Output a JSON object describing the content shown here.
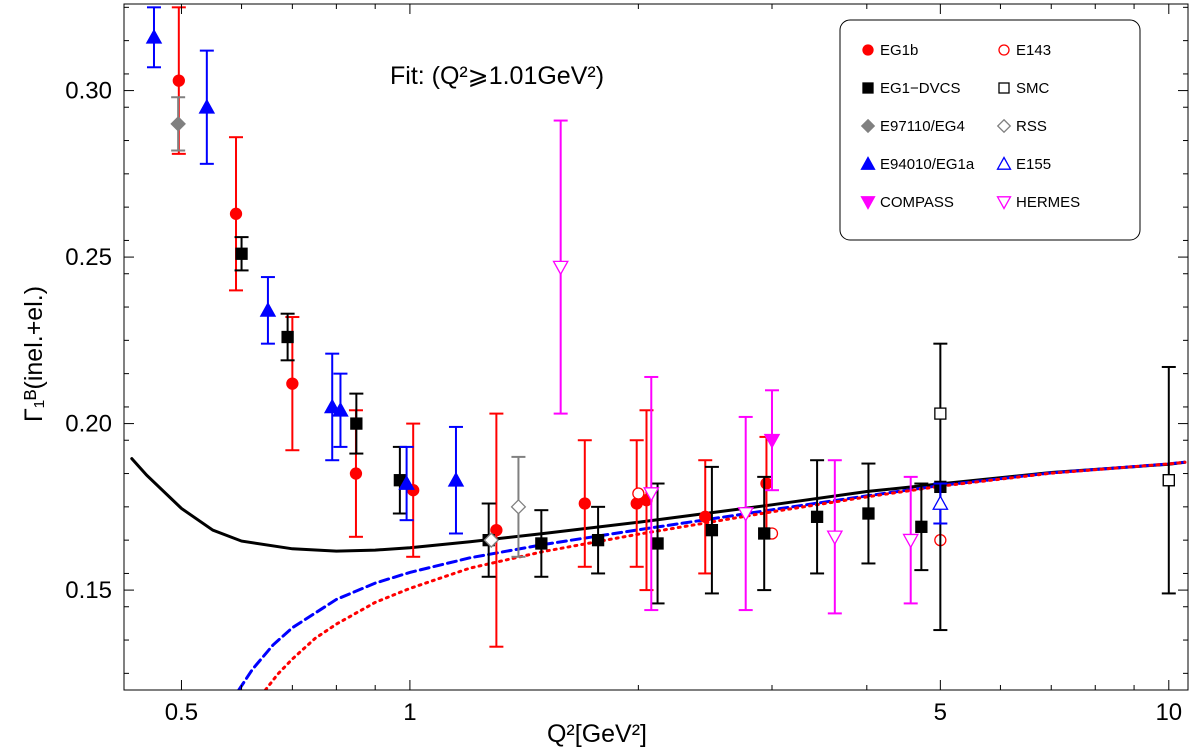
{
  "chart_data": {
    "type": "scatter",
    "title": "",
    "xlabel": "Q²[GeV²]",
    "ylabel": "Γ₁ᴮ(inel.+el.)",
    "xscale": "log",
    "xlim": [
      0.42,
      10.6
    ],
    "ylim": [
      0.12,
      0.326
    ],
    "x_ticks": [
      0.5,
      1,
      5,
      10
    ],
    "x_tick_labels": [
      "0.5",
      "1",
      "5",
      "10"
    ],
    "y_ticks": [
      0.15,
      0.2,
      0.25,
      0.3
    ],
    "y_tick_labels": [
      "0.15",
      "0.20",
      "0.25",
      "0.30"
    ],
    "grid": false,
    "annotation": "Fit:  (Q²⩾1.01GeV²)",
    "legend_position": "top-right",
    "series": [
      {
        "name": "EG1b",
        "marker": "filled-circle",
        "color": "#ff0000",
        "points": [
          {
            "x": 0.496,
            "y": 0.303,
            "err": 0.022
          },
          {
            "x": 0.59,
            "y": 0.263,
            "err": 0.023
          },
          {
            "x": 0.7,
            "y": 0.212,
            "err": 0.02
          },
          {
            "x": 0.849,
            "y": 0.185,
            "err": 0.019
          },
          {
            "x": 1.01,
            "y": 0.18,
            "err": 0.02
          },
          {
            "x": 1.3,
            "y": 0.168,
            "err": 0.035
          },
          {
            "x": 1.7,
            "y": 0.176,
            "err": 0.019
          },
          {
            "x": 2.05,
            "y": 0.177,
            "err": 0.027
          },
          {
            "x": 2.45,
            "y": 0.172,
            "err": 0.017
          },
          {
            "x": 2.95,
            "y": 0.182,
            "err": 0.014
          },
          {
            "x": 1.99,
            "y": 0.176,
            "err": 0.019
          }
        ]
      },
      {
        "name": "E143",
        "marker": "open-circle",
        "color": "#ff0000",
        "points": [
          {
            "x": 2.0,
            "y": 0.179,
            "err": 0.0
          },
          {
            "x": 3.0,
            "y": 0.167,
            "err": 0.0
          },
          {
            "x": 5.0,
            "y": 0.165,
            "err": 0.0
          }
        ]
      },
      {
        "name": "EG1−DVCS",
        "marker": "filled-square",
        "color": "#000000",
        "points": [
          {
            "x": 0.6,
            "y": 0.251,
            "err": 0.005
          },
          {
            "x": 0.69,
            "y": 0.226,
            "err": 0.007
          },
          {
            "x": 0.85,
            "y": 0.2,
            "err": 0.009
          },
          {
            "x": 0.97,
            "y": 0.183,
            "err": 0.01
          },
          {
            "x": 1.27,
            "y": 0.165,
            "err": 0.011
          },
          {
            "x": 1.49,
            "y": 0.164,
            "err": 0.01
          },
          {
            "x": 1.77,
            "y": 0.165,
            "err": 0.01
          },
          {
            "x": 2.12,
            "y": 0.164,
            "err": 0.018
          },
          {
            "x": 2.5,
            "y": 0.168,
            "err": 0.019
          },
          {
            "x": 2.93,
            "y": 0.167,
            "err": 0.017
          },
          {
            "x": 3.44,
            "y": 0.172,
            "err": 0.017
          },
          {
            "x": 4.02,
            "y": 0.173,
            "err": 0.015
          },
          {
            "x": 4.72,
            "y": 0.169,
            "err": 0.013
          },
          {
            "x": 5.0,
            "y": 0.181,
            "err": 0.043
          },
          {
            "x": 10.0,
            "y": 0.183,
            "err": 0.034
          }
        ]
      },
      {
        "name": "SMC",
        "marker": "open-square",
        "color": "#000000",
        "points": [
          {
            "x": 5.0,
            "y": 0.203,
            "err": 0.0
          },
          {
            "x": 10.0,
            "y": 0.183,
            "err": 0.0
          }
        ]
      },
      {
        "name": "E97110/EG4",
        "marker": "filled-diamond",
        "color": "#808080",
        "points": [
          {
            "x": 0.495,
            "y": 0.29,
            "err": 0.008
          }
        ]
      },
      {
        "name": "RSS",
        "marker": "open-diamond",
        "color": "#808080",
        "points": [
          {
            "x": 1.39,
            "y": 0.175,
            "err": 0.015
          },
          {
            "x": 1.28,
            "y": 0.165,
            "err": 0.0
          }
        ]
      },
      {
        "name": "E94010/EG1a",
        "marker": "filled-triangle-up",
        "color": "#0000ff",
        "points": [
          {
            "x": 0.46,
            "y": 0.316,
            "err": 0.009
          },
          {
            "x": 0.54,
            "y": 0.295,
            "err": 0.017
          },
          {
            "x": 0.65,
            "y": 0.234,
            "err": 0.01
          },
          {
            "x": 0.79,
            "y": 0.205,
            "err": 0.016
          },
          {
            "x": 0.81,
            "y": 0.204,
            "err": 0.011
          },
          {
            "x": 0.99,
            "y": 0.182,
            "err": 0.011
          },
          {
            "x": 1.15,
            "y": 0.183,
            "err": 0.016
          }
        ]
      },
      {
        "name": "E155",
        "marker": "open-triangle-up",
        "color": "#0000ff",
        "points": [
          {
            "x": 5.0,
            "y": 0.176,
            "err": 0.006
          }
        ]
      },
      {
        "name": "COMPASS",
        "marker": "filled-triangle-down",
        "color": "#ff00ff",
        "points": [
          {
            "x": 3.0,
            "y": 0.195,
            "err": 0.015
          }
        ]
      },
      {
        "name": "HERMES",
        "marker": "open-triangle-down",
        "color": "#ff00ff",
        "points": [
          {
            "x": 1.58,
            "y": 0.247,
            "err": 0.044
          },
          {
            "x": 2.08,
            "y": 0.179,
            "err": 0.035
          },
          {
            "x": 2.77,
            "y": 0.173,
            "err": 0.029
          },
          {
            "x": 3.63,
            "y": 0.166,
            "err": 0.023
          },
          {
            "x": 4.57,
            "y": 0.165,
            "err": 0.019
          }
        ]
      }
    ],
    "curves": [
      {
        "style": "solid",
        "color": "#000000",
        "x": [
          0.43,
          0.45,
          0.5,
          0.55,
          0.6,
          0.7,
          0.8,
          0.9,
          1.0,
          1.2,
          1.5,
          2.0,
          3.0,
          4.0,
          5.0,
          7.0,
          10.0,
          10.5
        ],
        "y": [
          0.1895,
          0.1845,
          0.1745,
          0.168,
          0.1647,
          0.1624,
          0.1617,
          0.162,
          0.1627,
          0.1645,
          0.167,
          0.1704,
          0.1756,
          0.1796,
          0.1819,
          0.1853,
          0.1878,
          0.1884
        ]
      },
      {
        "style": "dashed",
        "color": "#0000ff",
        "x": [
          0.595,
          0.62,
          0.66,
          0.7,
          0.8,
          0.9,
          1.0,
          1.2,
          1.5,
          2.0,
          3.0,
          4.0,
          5.0,
          7.0,
          10.0,
          10.5
        ],
        "y": [
          0.12,
          0.1262,
          0.1335,
          0.1387,
          0.1472,
          0.1521,
          0.1553,
          0.1597,
          0.1637,
          0.1681,
          0.1741,
          0.1783,
          0.1814,
          0.1852,
          0.1879,
          0.1884
        ]
      },
      {
        "style": "dotted",
        "color": "#ff0000",
        "x": [
          0.645,
          0.67,
          0.7,
          0.75,
          0.8,
          0.9,
          1.0,
          1.2,
          1.5,
          2.0,
          3.0,
          4.0,
          5.0,
          7.0,
          10.0,
          10.5
        ],
        "y": [
          0.12,
          0.1248,
          0.1293,
          0.1355,
          0.1398,
          0.1463,
          0.1505,
          0.1566,
          0.1616,
          0.1668,
          0.1735,
          0.178,
          0.1812,
          0.1851,
          0.1879,
          0.1884
        ]
      }
    ]
  }
}
